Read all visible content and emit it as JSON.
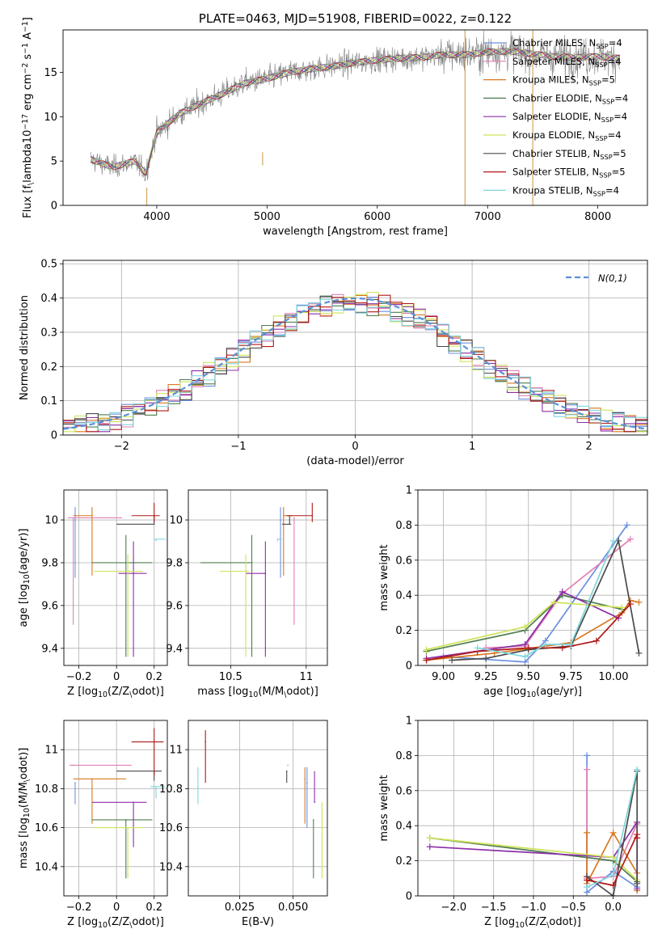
{
  "figure_title": "PLATE=0463, MJD=51908, FIBERID=0022, z=0.122",
  "models": [
    {
      "label": "Chabrier MILES, N$_{SSP}$=4",
      "color": "#6b8fe0"
    },
    {
      "label": "Salpeter MILES, N$_{SSP}$=4",
      "color": "#e37fb4"
    },
    {
      "label": "Kroupa MILES, N$_{SSP}$=5",
      "color": "#d8781f"
    },
    {
      "label": "Chabrier ELODIE, N$_{SSP}$=4",
      "color": "#4f7d4f"
    },
    {
      "label": "Salpeter ELODIE, N$_{SSP}$=4",
      "color": "#8b2fa8"
    },
    {
      "label": "Kroupa ELODIE, N$_{SSP}$=4",
      "color": "#cfe35a"
    },
    {
      "label": "Chabrier STELIB, N$_{SSP}$=5",
      "color": "#4a4a4a"
    },
    {
      "label": "Salpeter STELIB, N$_{SSP}$=5",
      "color": "#b01818"
    },
    {
      "label": "Kroupa STELIB, N$_{SSP}$=4",
      "color": "#7fd6db"
    }
  ],
  "chart_data": [
    {
      "type": "line",
      "id": "spectrum",
      "title": "PLATE=0463, MJD=51908, FIBERID=0022, z=0.122",
      "xlabel": "wavelength [Angstrom, rest frame]",
      "ylabel": "Flux [f$_\\lambda$10$^{-17}$ erg cm$^{-2}$ s$^{-1}$ A$^{-1}$]",
      "xlim": [
        3150,
        8450
      ],
      "ylim": [
        0,
        19.8
      ],
      "xticks": [
        4000,
        5000,
        6000,
        7000,
        8000
      ],
      "yticks": [
        0,
        5,
        10,
        15
      ],
      "legend": "upper right",
      "continuum_x": [
        3400,
        3600,
        3800,
        3900,
        4000,
        4200,
        4400,
        4600,
        4800,
        5000,
        5200,
        5400,
        5600,
        5800,
        6000,
        6200,
        6400,
        6600,
        6800,
        7000,
        7200,
        7400,
        7600,
        7800,
        8000,
        8200
      ],
      "continuum_y": [
        5.2,
        4.3,
        5.0,
        3.6,
        8.2,
        10.3,
        11.5,
        12.6,
        13.8,
        14.3,
        15.0,
        15.4,
        15.7,
        16.1,
        16.4,
        16.6,
        16.7,
        17.0,
        17.0,
        17.3,
        17.4,
        17.1,
        16.8,
        16.7,
        16.8,
        16.6
      ],
      "data_line_color": "#808080"
    },
    {
      "type": "histogram",
      "id": "residuals",
      "xlabel": "(data-model)/error",
      "ylabel": "Normed distribution",
      "xlim": [
        -2.5,
        2.5
      ],
      "ylim": [
        0,
        0.51
      ],
      "xticks": [
        -2,
        -1,
        0,
        1,
        2
      ],
      "yticks": [
        0.0,
        0.1,
        0.2,
        0.3,
        0.4,
        0.5
      ],
      "grid": true,
      "legend": "upper right",
      "reference_curve": {
        "name": "$\\mathcal{N}(0,1)$",
        "mu": 0,
        "sigma": 1,
        "color": "#5b8fd6"
      },
      "bin_width": 0.1
    },
    {
      "type": "scatter",
      "id": "age_vs_Z",
      "xlabel": "Z [log$_{10}$(Z/Z$_\\odot$)]",
      "ylabel": "age  [log$_{10}$(age/yr)]",
      "xlim": [
        -0.28,
        0.27
      ],
      "ylim": [
        9.32,
        10.14
      ],
      "xticks": [
        -0.2,
        0.0,
        0.2
      ],
      "yticks": [
        9.4,
        9.6,
        9.8,
        10.0
      ],
      "grid": true,
      "points": [
        {
          "x": -0.22,
          "xerr": [
            0.0,
            0.0
          ],
          "y": 10.0,
          "yerr": [
            0.27,
            0.06
          ]
        },
        {
          "x": -0.23,
          "xerr": [
            0.03,
            0.26
          ],
          "y": 10.01,
          "yerr": [
            0.5,
            0.0
          ]
        },
        {
          "x": -0.13,
          "xerr": [
            0.1,
            0.0
          ],
          "y": 10.02,
          "yerr": [
            0.28,
            0.04
          ]
        },
        {
          "x": 0.05,
          "xerr": [
            0.18,
            0.14
          ],
          "y": 9.8,
          "yerr": [
            0.44,
            0.13
          ]
        },
        {
          "x": 0.09,
          "xerr": [
            0.08,
            0.07
          ],
          "y": 9.75,
          "yerr": [
            0.39,
            0.15
          ]
        },
        {
          "x": 0.06,
          "xerr": [
            0.18,
            0.08
          ],
          "y": 9.76,
          "yerr": [
            0.4,
            0.08
          ]
        },
        {
          "x": 0.2,
          "xerr": [
            0.2,
            0.0
          ],
          "y": 9.98,
          "yerr": [
            0.0,
            0.04
          ]
        },
        {
          "x": 0.2,
          "xerr": [
            0.12,
            0.03
          ],
          "y": 10.02,
          "yerr": [
            0.03,
            0.06
          ]
        },
        {
          "x": 0.21,
          "xerr": [
            0.01,
            0.05
          ],
          "y": 9.91,
          "yerr": [
            0.01,
            0.0
          ]
        }
      ]
    },
    {
      "type": "scatter",
      "id": "age_vs_mass",
      "xlabel": "mass [log$_{10}$(M/M$_\\odot$)]",
      "ylabel": "",
      "xlim": [
        10.22,
        11.14
      ],
      "ylim": [
        9.32,
        10.14
      ],
      "xticks": [
        10.5,
        11.0
      ],
      "yticks": [
        9.4,
        9.6,
        9.8,
        10.0
      ],
      "grid": true,
      "points": [
        {
          "x": 10.83,
          "xerr": [
            0.0,
            0.0
          ],
          "y": 10.0,
          "yerr": [
            0.27,
            0.06
          ]
        },
        {
          "x": 10.92,
          "xerr": [
            0.0,
            0.0
          ],
          "y": 10.01,
          "yerr": [
            0.5,
            0.0
          ]
        },
        {
          "x": 10.85,
          "xerr": [
            0.0,
            0.06
          ],
          "y": 10.02,
          "yerr": [
            0.28,
            0.04
          ]
        },
        {
          "x": 10.64,
          "xerr": [
            0.34,
            0.0
          ],
          "y": 9.8,
          "yerr": [
            0.44,
            0.13
          ]
        },
        {
          "x": 10.73,
          "xerr": [
            0.13,
            0.0
          ],
          "y": 9.75,
          "yerr": [
            0.39,
            0.15
          ]
        },
        {
          "x": 10.6,
          "xerr": [
            0.17,
            0.02
          ],
          "y": 9.76,
          "yerr": [
            0.4,
            0.08
          ]
        },
        {
          "x": 10.89,
          "xerr": [
            0.05,
            0.01
          ],
          "y": 9.98,
          "yerr": [
            0.0,
            0.04
          ]
        },
        {
          "x": 11.04,
          "xerr": [
            0.17,
            0.0
          ],
          "y": 10.02,
          "yerr": [
            0.03,
            0.06
          ]
        },
        {
          "x": 10.81,
          "xerr": [
            0.0,
            0.03
          ],
          "y": 9.91,
          "yerr": [
            0.01,
            0.0
          ]
        }
      ]
    },
    {
      "type": "line",
      "id": "weight_vs_age",
      "xlabel": "age  [log$_{10}$(age/yr)]",
      "ylabel": "mass weight",
      "xlim": [
        8.85,
        10.2
      ],
      "ylim": [
        0,
        1.0
      ],
      "xticks": [
        9.0,
        9.25,
        9.5,
        9.75,
        10.0
      ],
      "xtick_labels": [
        "9.00",
        "9.25",
        "9.50",
        "9.75",
        "10.00"
      ],
      "yticks": [
        0.0,
        0.2,
        0.4,
        0.6,
        0.8,
        1.0
      ],
      "grid": true,
      "series": [
        {
          "x": [
            9.0,
            9.48,
            9.6,
            10.08
          ],
          "y": [
            0.05,
            0.02,
            0.14,
            0.8
          ]
        },
        {
          "x": [
            9.25,
            9.48,
            9.7,
            10.1
          ],
          "y": [
            0.1,
            0.11,
            0.41,
            0.72
          ]
        },
        {
          "x": [
            8.9,
            9.3,
            9.75,
            10.05,
            10.1,
            10.15
          ],
          "y": [
            0.03,
            0.07,
            0.13,
            0.3,
            0.37,
            0.36
          ]
        },
        {
          "x": [
            8.9,
            9.48,
            9.7,
            10.05
          ],
          "y": [
            0.08,
            0.2,
            0.4,
            0.32
          ]
        },
        {
          "x": [
            8.9,
            9.48,
            9.7,
            10.03
          ],
          "y": [
            0.04,
            0.12,
            0.42,
            0.27
          ]
        },
        {
          "x": [
            8.9,
            9.48,
            9.65,
            10.05
          ],
          "y": [
            0.09,
            0.22,
            0.36,
            0.33
          ]
        },
        {
          "x": [
            9.05,
            9.25,
            9.5,
            9.75,
            10.03,
            10.15
          ],
          "y": [
            0.03,
            0.04,
            0.09,
            0.11,
            0.71,
            0.07
          ]
        },
        {
          "x": [
            8.9,
            9.2,
            9.5,
            9.7,
            9.9,
            10.1
          ],
          "y": [
            0.03,
            0.08,
            0.1,
            0.1,
            0.14,
            0.35
          ]
        },
        {
          "x": [
            9.2,
            9.48,
            9.6,
            9.75,
            10.0
          ],
          "y": [
            0.1,
            0.05,
            0.12,
            0.12,
            0.71
          ]
        }
      ]
    },
    {
      "type": "scatter",
      "id": "mass_vs_Z",
      "xlabel": "Z [log$_{10}$(Z/Z$_\\odot$)]",
      "ylabel": "mass [log$_{10}$(M/M$_\\odot$)]",
      "xlim": [
        -0.28,
        0.27
      ],
      "ylim": [
        10.25,
        11.15
      ],
      "xticks": [
        -0.2,
        0.0,
        0.2
      ],
      "yticks": [
        10.4,
        10.6,
        10.8,
        11.0
      ],
      "grid": true,
      "points": [
        {
          "x": -0.22,
          "xerr": [
            0.0,
            0.0
          ],
          "y": 10.83,
          "yerr": [
            0.11,
            0.0
          ]
        },
        {
          "x": -0.23,
          "xerr": [
            0.02,
            0.31
          ],
          "y": 10.92,
          "yerr": [
            0.0,
            0.0
          ]
        },
        {
          "x": -0.13,
          "xerr": [
            0.1,
            0.18
          ],
          "y": 10.85,
          "yerr": [
            0.23,
            0.0
          ]
        },
        {
          "x": 0.05,
          "xerr": [
            0.18,
            0.14
          ],
          "y": 10.64,
          "yerr": [
            0.3,
            0.0
          ]
        },
        {
          "x": 0.09,
          "xerr": [
            0.22,
            0.07
          ],
          "y": 10.73,
          "yerr": [
            0.23,
            0.0
          ]
        },
        {
          "x": 0.06,
          "xerr": [
            0.18,
            0.08
          ],
          "y": 10.6,
          "yerr": [
            0.26,
            0.0
          ]
        },
        {
          "x": 0.2,
          "xerr": [
            0.2,
            0.04
          ],
          "y": 10.89,
          "yerr": [
            0.05,
            0.0
          ]
        },
        {
          "x": 0.2,
          "xerr": [
            0.12,
            0.05
          ],
          "y": 11.04,
          "yerr": [
            0.17,
            0.07
          ]
        },
        {
          "x": 0.21,
          "xerr": [
            0.03,
            0.05
          ],
          "y": 10.81,
          "yerr": [
            0.06,
            0.0
          ]
        }
      ]
    },
    {
      "type": "scatter",
      "id": "mass_vs_ebv",
      "xlabel": "E(B-V)",
      "ylabel": "",
      "xlim": [
        0.001,
        0.066
      ],
      "ylim": [
        10.25,
        11.15
      ],
      "xticks": [
        0.025,
        0.05
      ],
      "xtick_labels": [
        "0.025",
        "0.050"
      ],
      "yticks": [
        10.4,
        10.6,
        10.8,
        11.0
      ],
      "grid": true,
      "points": [
        {
          "x": 0.0565,
          "y": 10.83,
          "yerr": [
            0.23,
            0.08
          ]
        },
        {
          "x": 0.0475,
          "y": 10.92,
          "yerr": [
            0.0,
            0.0
          ]
        },
        {
          "x": 0.0555,
          "y": 10.85,
          "yerr": [
            0.23,
            0.06
          ]
        },
        {
          "x": 0.0595,
          "y": 10.64,
          "yerr": [
            0.3,
            0.0
          ]
        },
        {
          "x": 0.06,
          "y": 10.73,
          "yerr": [
            0.0,
            0.16
          ]
        },
        {
          "x": 0.0635,
          "y": 10.6,
          "yerr": [
            0.26,
            0.13
          ]
        },
        {
          "x": 0.047,
          "y": 10.89,
          "yerr": [
            0.06,
            0.0
          ]
        },
        {
          "x": 0.009,
          "y": 11.04,
          "yerr": [
            0.21,
            0.06
          ]
        },
        {
          "x": 0.0055,
          "y": 10.81,
          "yerr": [
            0.09,
            0.1
          ]
        }
      ]
    },
    {
      "type": "line",
      "id": "weight_vs_Z",
      "xlabel": "Z [log$_{10}$(Z/Z$_\\odot$)]",
      "ylabel": "mass weight",
      "xlim": [
        -2.45,
        0.43
      ],
      "ylim": [
        0,
        1.0
      ],
      "xticks": [
        -2.0,
        -1.5,
        -1.0,
        -0.5,
        0.0
      ],
      "xtick_labels": [
        "−2.0",
        "−1.5",
        "−1.0",
        "−0.5",
        "0.0"
      ],
      "yticks": [
        0.0,
        0.2,
        0.4,
        0.6,
        0.8,
        1.0
      ],
      "grid": true,
      "series": [
        {
          "x": [
            -0.33,
            -0.33,
            0.0,
            0.3
          ],
          "y": [
            0.8,
            0.02,
            0.14,
            0.05
          ]
        },
        {
          "x": [
            -0.33,
            -0.33,
            0.0,
            0.3
          ],
          "y": [
            0.72,
            0.1,
            0.11,
            0.41
          ]
        },
        {
          "x": [
            -0.33,
            -0.33,
            0.0,
            0.3,
            0.3
          ],
          "y": [
            0.36,
            0.07,
            0.36,
            0.13,
            0.03
          ]
        },
        {
          "x": [
            -2.3,
            0.0,
            0.3
          ],
          "y": [
            0.33,
            0.2,
            0.08
          ]
        },
        {
          "x": [
            -2.3,
            0.0,
            0.3,
            0.3
          ],
          "y": [
            0.28,
            0.22,
            0.42,
            0.04
          ]
        },
        {
          "x": [
            -2.3,
            0.0,
            0.3
          ],
          "y": [
            0.33,
            0.22,
            0.09
          ]
        },
        {
          "x": [
            -0.33,
            0.0,
            0.3,
            0.3
          ],
          "y": [
            0.11,
            0.0,
            0.71,
            0.07
          ]
        },
        {
          "x": [
            -0.33,
            0.0,
            0.3,
            0.3
          ],
          "y": [
            0.09,
            0.06,
            0.35,
            0.33
          ]
        },
        {
          "x": [
            -0.33,
            0.0,
            0.3
          ],
          "y": [
            0.05,
            0.12,
            0.72
          ]
        }
      ]
    }
  ]
}
